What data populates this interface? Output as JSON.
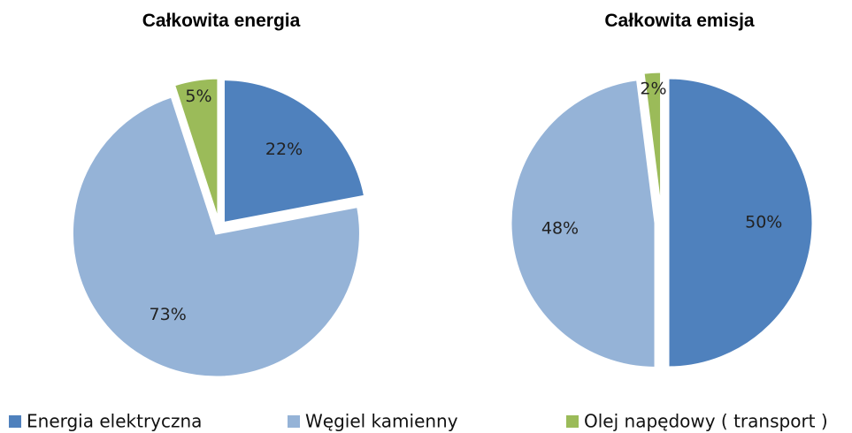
{
  "chart_data": [
    {
      "type": "pie",
      "title": "Całkowita energia",
      "values": [
        22,
        73,
        5
      ],
      "value_labels": [
        "22%",
        "73%",
        "5%"
      ]
    },
    {
      "type": "pie",
      "title": "Całkowita emisja",
      "values": [
        50,
        48,
        2
      ],
      "value_labels": [
        "50%",
        "48%",
        "2%"
      ]
    }
  ],
  "legend": {
    "categories": [
      "Energia elektryczna",
      "Węgiel kamienny",
      "Olej napędowy ( transport )"
    ],
    "colors": [
      "#4f81bd",
      "#95b3d7",
      "#9bbb59"
    ]
  }
}
